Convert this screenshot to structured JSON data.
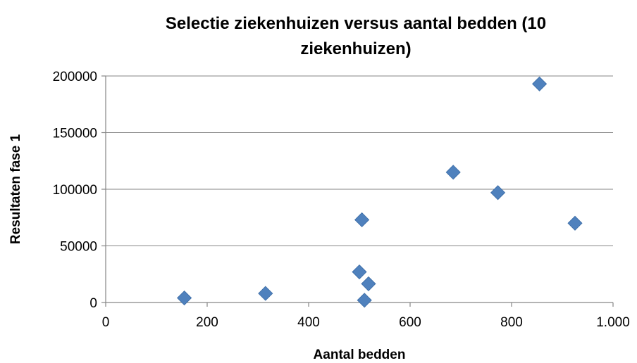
{
  "chart_data": {
    "type": "scatter",
    "title_lines": [
      "Selectie ziekenhuizen versus aantal bedden (10",
      "ziekenhuizen)"
    ],
    "xlabel": "Aantal bedden",
    "ylabel": "Resultaten fase 1",
    "xlim": [
      0,
      1000
    ],
    "ylim": [
      0,
      200000
    ],
    "x_ticks": [
      {
        "value": 0,
        "label": "0"
      },
      {
        "value": 200,
        "label": "200"
      },
      {
        "value": 400,
        "label": "400"
      },
      {
        "value": 600,
        "label": "600"
      },
      {
        "value": 800,
        "label": "800"
      },
      {
        "value": 1000,
        "label": "1.000"
      }
    ],
    "y_ticks": [
      {
        "value": 0,
        "label": "0"
      },
      {
        "value": 50000,
        "label": "50000"
      },
      {
        "value": 100000,
        "label": "100000"
      },
      {
        "value": 150000,
        "label": "150000"
      },
      {
        "value": 200000,
        "label": "200000"
      }
    ],
    "grid": "horizontal",
    "legend": "none",
    "marker": "diamond",
    "marker_color": "#4F81BD",
    "points": [
      {
        "x": 155,
        "y": 4000
      },
      {
        "x": 315,
        "y": 8000
      },
      {
        "x": 500,
        "y": 27000
      },
      {
        "x": 505,
        "y": 73000
      },
      {
        "x": 510,
        "y": 2000
      },
      {
        "x": 518,
        "y": 16500
      },
      {
        "x": 685,
        "y": 115000
      },
      {
        "x": 773,
        "y": 97000
      },
      {
        "x": 855,
        "y": 193000
      },
      {
        "x": 925,
        "y": 70000
      }
    ]
  }
}
